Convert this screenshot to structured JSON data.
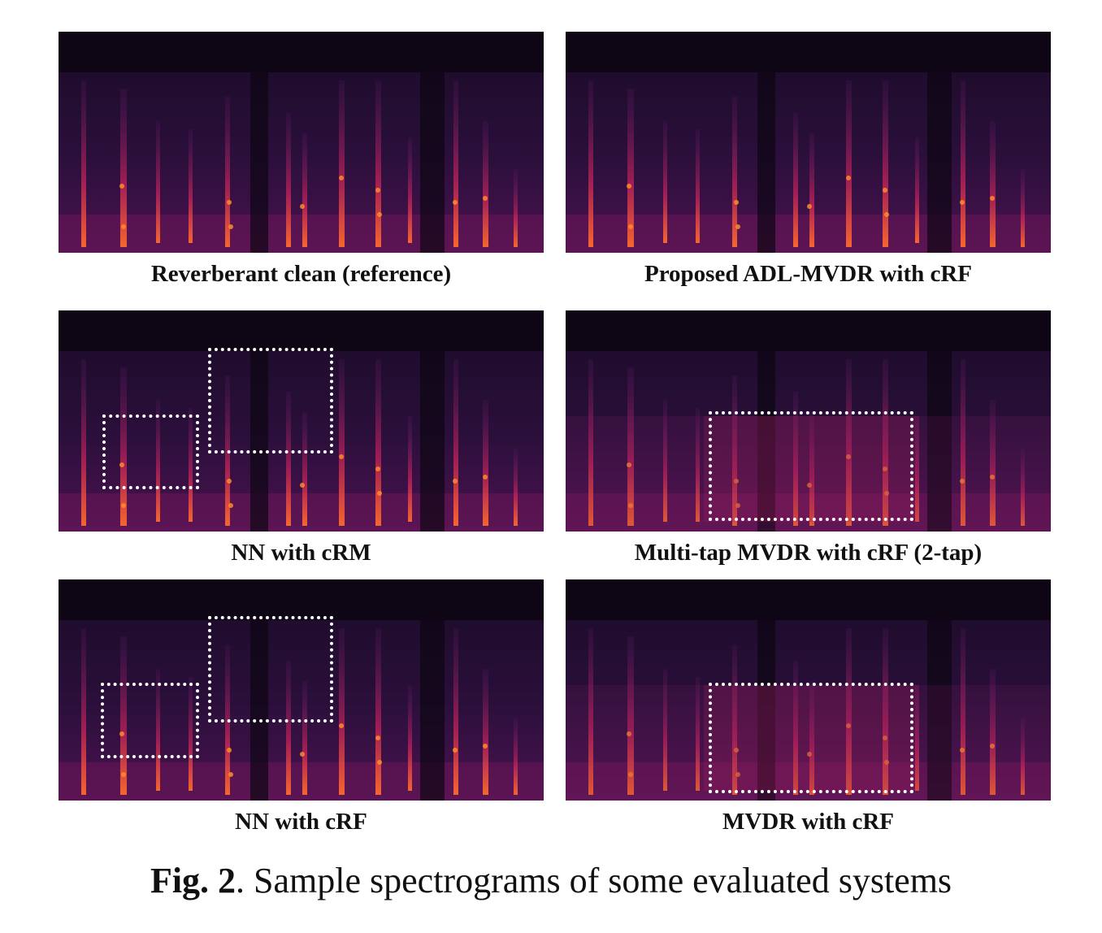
{
  "panels": [
    {
      "id": "tl",
      "label": "Reverberant clean (reference)"
    },
    {
      "id": "tr",
      "label": "Proposed ADL-MVDR with cRF"
    },
    {
      "id": "ml",
      "label": "NN with cRM"
    },
    {
      "id": "mr",
      "label": "Multi-tap MVDR with cRF (2-tap)"
    },
    {
      "id": "bl",
      "label": "NN with cRF"
    },
    {
      "id": "br",
      "label": "MVDR with cRF"
    }
  ],
  "caption": {
    "fig": "Fig. 2",
    "text": ". Sample spectrograms of some evaluated systems"
  },
  "colors": {
    "background": "#0e0714",
    "dotted_box": "#ffffff"
  }
}
